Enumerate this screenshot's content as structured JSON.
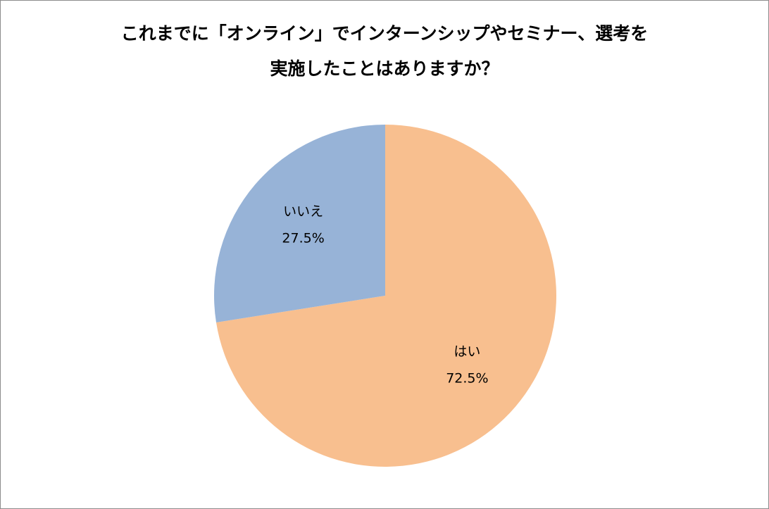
{
  "chart_data": {
    "type": "pie",
    "title_lines": [
      "これまでに「オンライン」でインターンシップやセミナー、選考を",
      "実施したことはありますか？"
    ],
    "slices": [
      {
        "label": "はい",
        "value": 72.5,
        "value_label": "72.5%",
        "color": "#F8BF8F"
      },
      {
        "label": "いいえ",
        "value": 27.5,
        "value_label": "27.5%",
        "color": "#97B3D7"
      }
    ],
    "start_angle_deg": 0,
    "direction": "clockwise"
  }
}
